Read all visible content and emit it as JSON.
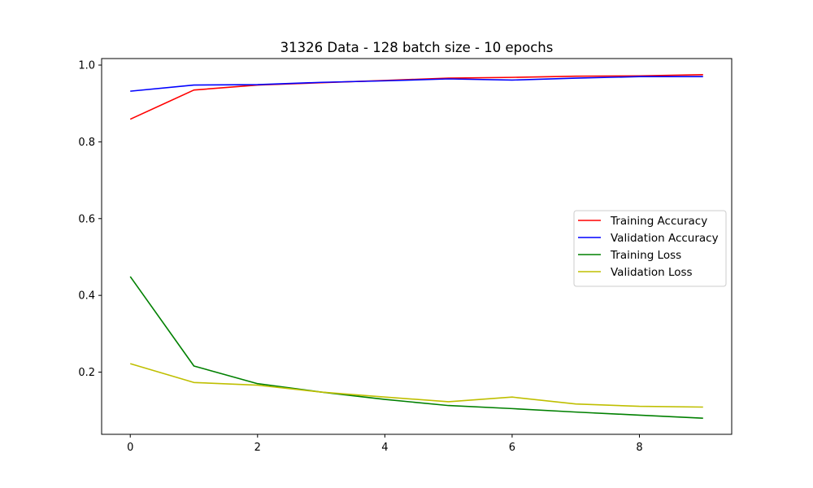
{
  "chart_data": {
    "type": "line",
    "title": "31326 Data - 128 batch size - 10 epochs",
    "xlabel": "",
    "ylabel": "",
    "x": [
      0,
      1,
      2,
      3,
      4,
      5,
      6,
      7,
      8,
      9
    ],
    "xlim": [
      -0.45,
      9.45
    ],
    "ylim": [
      0.038,
      1.017
    ],
    "xticks": [
      0,
      2,
      4,
      6,
      8
    ],
    "xtick_labels": [
      "0",
      "2",
      "4",
      "6",
      "8"
    ],
    "yticks": [
      0.2,
      0.4,
      0.6,
      0.8,
      1.0
    ],
    "ytick_labels": [
      "0.2",
      "0.4",
      "0.6",
      "0.8",
      "1.0"
    ],
    "grid": false,
    "legend_position": "center-right",
    "series": [
      {
        "name": "Training Accuracy",
        "color": "#ff0000",
        "values": [
          0.859,
          0.935,
          0.948,
          0.954,
          0.96,
          0.966,
          0.968,
          0.971,
          0.972,
          0.975
        ]
      },
      {
        "name": "Validation Accuracy",
        "color": "#0000ff",
        "values": [
          0.932,
          0.948,
          0.949,
          0.955,
          0.959,
          0.964,
          0.961,
          0.966,
          0.97,
          0.97
        ]
      },
      {
        "name": "Training Loss",
        "color": "#008000",
        "values": [
          0.449,
          0.216,
          0.17,
          0.148,
          0.129,
          0.113,
          0.105,
          0.096,
          0.088,
          0.08
        ]
      },
      {
        "name": "Validation Loss",
        "color": "#bfbf00",
        "values": [
          0.222,
          0.173,
          0.166,
          0.148,
          0.135,
          0.123,
          0.135,
          0.117,
          0.111,
          0.109
        ]
      }
    ]
  }
}
